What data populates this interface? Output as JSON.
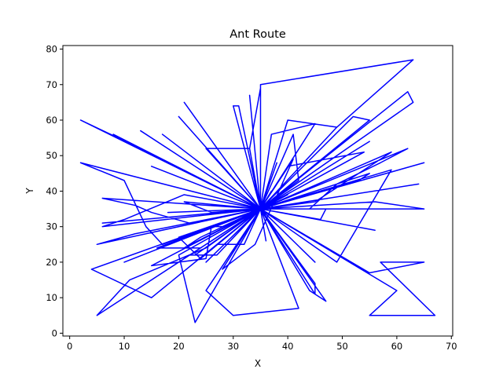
{
  "chart_data": {
    "type": "line",
    "title": "Ant Route",
    "xlabel": "X",
    "ylabel": "Y",
    "xlim": [
      -1.25,
      70.25
    ],
    "ylim": [
      -0.8,
      81.0
    ],
    "xticks": [
      0,
      10,
      20,
      30,
      40,
      50,
      60,
      70
    ],
    "yticks": [
      0,
      10,
      20,
      30,
      40,
      50,
      60,
      70,
      80
    ],
    "grid": false,
    "line_color": "#0000ff",
    "series": [
      {
        "x": [
          35,
          24,
          21,
          35,
          65,
          56,
          35,
          41,
          34,
          28,
          35,
          50,
          35,
          6,
          12,
          15,
          22,
          35,
          45,
          35,
          15,
          25,
          26,
          28,
          35,
          23,
          20,
          35,
          53,
          55,
          35,
          35,
          40,
          35,
          63,
          62,
          35,
          40,
          54,
          35,
          15,
          35,
          33,
          35,
          6,
          10,
          21,
          35,
          18,
          35,
          27,
          32,
          35,
          50,
          35,
          16,
          24,
          35,
          37,
          45,
          35,
          25,
          33,
          35,
          5,
          11,
          25,
          35,
          40,
          49,
          35,
          26,
          35,
          42,
          41,
          35,
          35,
          33,
          35,
          21,
          35,
          45,
          45,
          35,
          45,
          59,
          35,
          52,
          55,
          35,
          22,
          27,
          35,
          20,
          13,
          35,
          30,
          31,
          35,
          4,
          15,
          35,
          8,
          35,
          2,
          13,
          35,
          38,
          35,
          56,
          35,
          2,
          10,
          14,
          17,
          35,
          37,
          35,
          35,
          63,
          49,
          35,
          55,
          35,
          62,
          57,
          49,
          44,
          35,
          42,
          30,
          25,
          35,
          59,
          49,
          35,
          38,
          35,
          65,
          35,
          47,
          46,
          35,
          55,
          65,
          57,
          67,
          55,
          60,
          35,
          12,
          5,
          35,
          20,
          24,
          35,
          21,
          26,
          35,
          23,
          35,
          44,
          47,
          35,
          6,
          35,
          10,
          35,
          64,
          35,
          36,
          35,
          25,
          35,
          17,
          35,
          20,
          35,
          35
        ],
        "y": [
          35,
          27,
          24,
          35,
          35,
          37,
          35,
          49,
          25,
          18,
          35,
          35,
          35,
          38,
          36,
          34,
          31,
          35,
          20,
          35,
          19,
          21,
          30,
          30,
          35,
          3,
          22,
          35,
          43,
          45,
          35,
          35,
          39,
          35,
          65,
          68,
          35,
          47,
          51,
          35,
          47,
          35,
          67,
          35,
          30,
          32,
          39,
          35,
          34,
          35,
          25,
          25,
          35,
          35,
          35,
          24,
          24,
          35,
          56,
          59,
          35,
          52,
          52,
          35,
          5,
          15,
          24,
          35,
          60,
          58,
          35,
          36,
          35,
          43,
          56,
          35,
          69,
          52,
          35,
          65,
          35,
          11,
          14,
          35,
          37,
          51,
          35,
          61,
          60,
          35,
          22,
          22,
          35,
          50,
          57,
          35,
          64,
          64,
          35,
          18,
          10,
          35,
          56,
          35,
          60,
          52,
          35,
          48,
          35,
          29,
          35,
          48,
          43,
          30,
          25,
          35,
          40,
          35,
          70,
          77,
          58,
          35,
          54,
          35,
          52,
          48,
          42,
          35,
          35,
          7,
          5,
          12,
          35,
          46,
          20,
          35,
          42,
          35,
          48,
          35,
          35,
          32,
          35,
          17,
          20,
          20,
          5,
          5,
          12,
          35,
          28,
          25,
          35,
          27,
          21,
          35,
          37,
          34,
          35,
          22,
          35,
          12,
          9,
          35,
          31,
          35,
          20,
          35,
          42,
          35,
          26,
          35,
          20,
          35,
          56,
          35,
          61,
          35,
          35
        ]
      }
    ]
  }
}
